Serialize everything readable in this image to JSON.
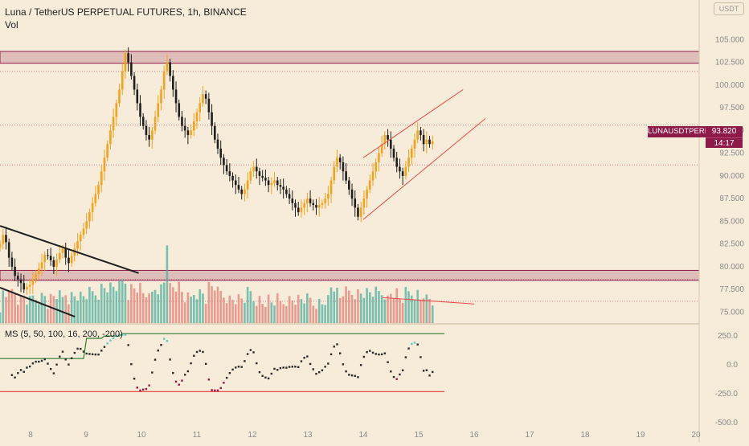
{
  "header": {
    "title": "Luna / TetherUS PERPETUAL FUTURES, 1h, BINANCE",
    "volume_label": "Vol",
    "currency_badge": "USDT"
  },
  "indicator": {
    "label": "MS (5, 50, 100, 16, 200, -200)"
  },
  "symbol_tag": {
    "name": "LUNAUSDTPERP",
    "price": "93.820",
    "countdown": "14:17"
  },
  "colors": {
    "background": "#f6ecd9",
    "bull": "#f7a21b",
    "bear": "#1f1f1f",
    "zone": "#8e1a4a",
    "trend_up": "#e84a4a",
    "trend_down": "#1f1f1f",
    "ms_upper": "#2e7d32",
    "ms_lower": "#e53935"
  },
  "chart_data": [
    {
      "type": "candlestick",
      "title": "Luna / TetherUS PERPETUAL FUTURES, 1h, BINANCE",
      "x_ticks": [
        "8",
        "9",
        "10",
        "11",
        "12",
        "13",
        "14",
        "15",
        "16",
        "17",
        "18",
        "19",
        "20"
      ],
      "y_ticks": [
        "105.000",
        "102.500",
        "100.000",
        "97.500",
        "95.000",
        "92.500",
        "90.000",
        "87.500",
        "85.000",
        "82.500",
        "80.000",
        "77.500",
        "75.000"
      ],
      "ylim": [
        73.8,
        106
      ],
      "closes": [
        82.5,
        83.5,
        82.7,
        81.0,
        80.0,
        79.0,
        78.6,
        78.2,
        77.5,
        77.8,
        78.0,
        78.6,
        79.2,
        79.8,
        80.5,
        81.3,
        81.2,
        80.7,
        80.0,
        80.8,
        81.5,
        82.0,
        81.0,
        80.4,
        81.2,
        82.0,
        82.8,
        83.5,
        84.2,
        85.0,
        86.0,
        87.0,
        88.0,
        89.0,
        90.5,
        92.0,
        93.5,
        95.0,
        96.5,
        98.0,
        99.5,
        101.5,
        103.5,
        102.5,
        101.0,
        99.5,
        98.0,
        96.5,
        95.5,
        94.5,
        94.0,
        95.0,
        96.5,
        98.0,
        99.5,
        101.5,
        102.5,
        101.0,
        99.5,
        98.0,
        96.5,
        95.5,
        95.0,
        94.5,
        95.0,
        96.0,
        97.0,
        98.0,
        99.0,
        98.5,
        97.0,
        95.5,
        94.0,
        93.0,
        92.0,
        91.2,
        90.5,
        90.0,
        89.5,
        89.0,
        88.5,
        88.0,
        88.5,
        89.5,
        90.5,
        91.0,
        90.5,
        90.0,
        89.8,
        89.5,
        89.0,
        89.2,
        89.5,
        89.0,
        88.8,
        88.5,
        88.0,
        87.5,
        87.0,
        86.5,
        86.0,
        86.5,
        87.0,
        87.5,
        87.0,
        86.8,
        86.5,
        86.8,
        87.0,
        87.5,
        88.0,
        89.5,
        91.0,
        92.0,
        91.5,
        90.5,
        89.5,
        88.5,
        87.5,
        86.5,
        85.5,
        86.5,
        87.5,
        88.5,
        89.5,
        90.5,
        91.5,
        92.5,
        93.5,
        94.5,
        94.0,
        93.0,
        92.0,
        91.0,
        90.5,
        90.0,
        91.0,
        92.0,
        93.0,
        94.0,
        95.0,
        94.5,
        93.5,
        94.0,
        93.5,
        93.8
      ],
      "volume_max": 300,
      "zones": [
        [
          102.4,
          103.7
        ],
        [
          78.5,
          79.6
        ]
      ],
      "notes": "Rising wedge drawn from the 14th low (~85.2) to the 15th highs (~95.5); descending trendline from day 8 toward day 10."
    },
    {
      "type": "line",
      "title": "MS (5, 50, 100, 16, 200, -200)",
      "y_ticks": [
        "250.0",
        "0.0",
        "-250.0",
        "-500.0"
      ],
      "ylim": [
        -540,
        320
      ],
      "upper_band": [
        55,
        55,
        55,
        55,
        55,
        55,
        55,
        55,
        55,
        55,
        55,
        55,
        55,
        55,
        55,
        55,
        55,
        55,
        55,
        55,
        55,
        55,
        55,
        55,
        55,
        55,
        55,
        55,
        55,
        230,
        230,
        230,
        230,
        230,
        230,
        250,
        250,
        250,
        250,
        250,
        250,
        270,
        270,
        270,
        270,
        270,
        270,
        270,
        270,
        270,
        270,
        270,
        270,
        270,
        270,
        270,
        270,
        270,
        270,
        270,
        270,
        270,
        270,
        270,
        270,
        270,
        270,
        270,
        270,
        270,
        270,
        270,
        270,
        270,
        270,
        270,
        270,
        270,
        270,
        270,
        270,
        270,
        270,
        270,
        270,
        270,
        270,
        270,
        270,
        270,
        270,
        270,
        270,
        270,
        270,
        270,
        270,
        270,
        270,
        270,
        270,
        270,
        270,
        270,
        270,
        270,
        270,
        270,
        270,
        270,
        270,
        270,
        270,
        270,
        270,
        270,
        270,
        270,
        270,
        270,
        270,
        270,
        270,
        270,
        270,
        270,
        270,
        270,
        270,
        270,
        270,
        270,
        270,
        270,
        270,
        270,
        270,
        270,
        270,
        270,
        270,
        270,
        270,
        270,
        270,
        270,
        270,
        270,
        270,
        270
      ],
      "lower_band": [
        -230,
        -230,
        -230,
        -230,
        -230,
        -230,
        -230,
        -230,
        -230,
        -230,
        -230,
        -230,
        -230,
        -230,
        -230,
        -230,
        -230,
        -230,
        -230,
        -230,
        -230,
        -230,
        -230,
        -230,
        -230,
        -230,
        -230,
        -230,
        -230,
        -230,
        -230,
        -230,
        -230,
        -230,
        -230,
        -230,
        -230,
        -230,
        -230,
        -230,
        -230,
        -230,
        -230,
        -230,
        -230,
        -230,
        -230,
        -230,
        -230,
        -230,
        -230,
        -230,
        -230,
        -230,
        -230,
        -230,
        -230,
        -230,
        -230,
        -230,
        -230,
        -230,
        -230,
        -230,
        -230,
        -230,
        -230,
        -230,
        -230,
        -230,
        -230,
        -230,
        -230,
        -230,
        -230,
        -230,
        -230,
        -230,
        -230,
        -230,
        -230,
        -230,
        -230,
        -230,
        -230,
        -230,
        -230,
        -230,
        -230,
        -230,
        -230,
        -230,
        -230,
        -230,
        -230,
        -230,
        -230,
        -230,
        -230,
        -230,
        -230,
        -230,
        -230,
        -230,
        -230,
        -230,
        -230,
        -230,
        -230,
        -230,
        -230,
        -230,
        -230,
        -230,
        -230,
        -230,
        -230,
        -230,
        -230,
        -230,
        -230,
        -230,
        -230,
        -230,
        -230,
        -230,
        -230,
        -230,
        -230,
        -230,
        -230,
        -230,
        -230,
        -230,
        -230,
        -230,
        -230,
        -230,
        -230,
        -230,
        -230,
        -230,
        -230,
        -230,
        -230,
        -230,
        -230,
        -230,
        -230,
        -230
      ]
    }
  ]
}
